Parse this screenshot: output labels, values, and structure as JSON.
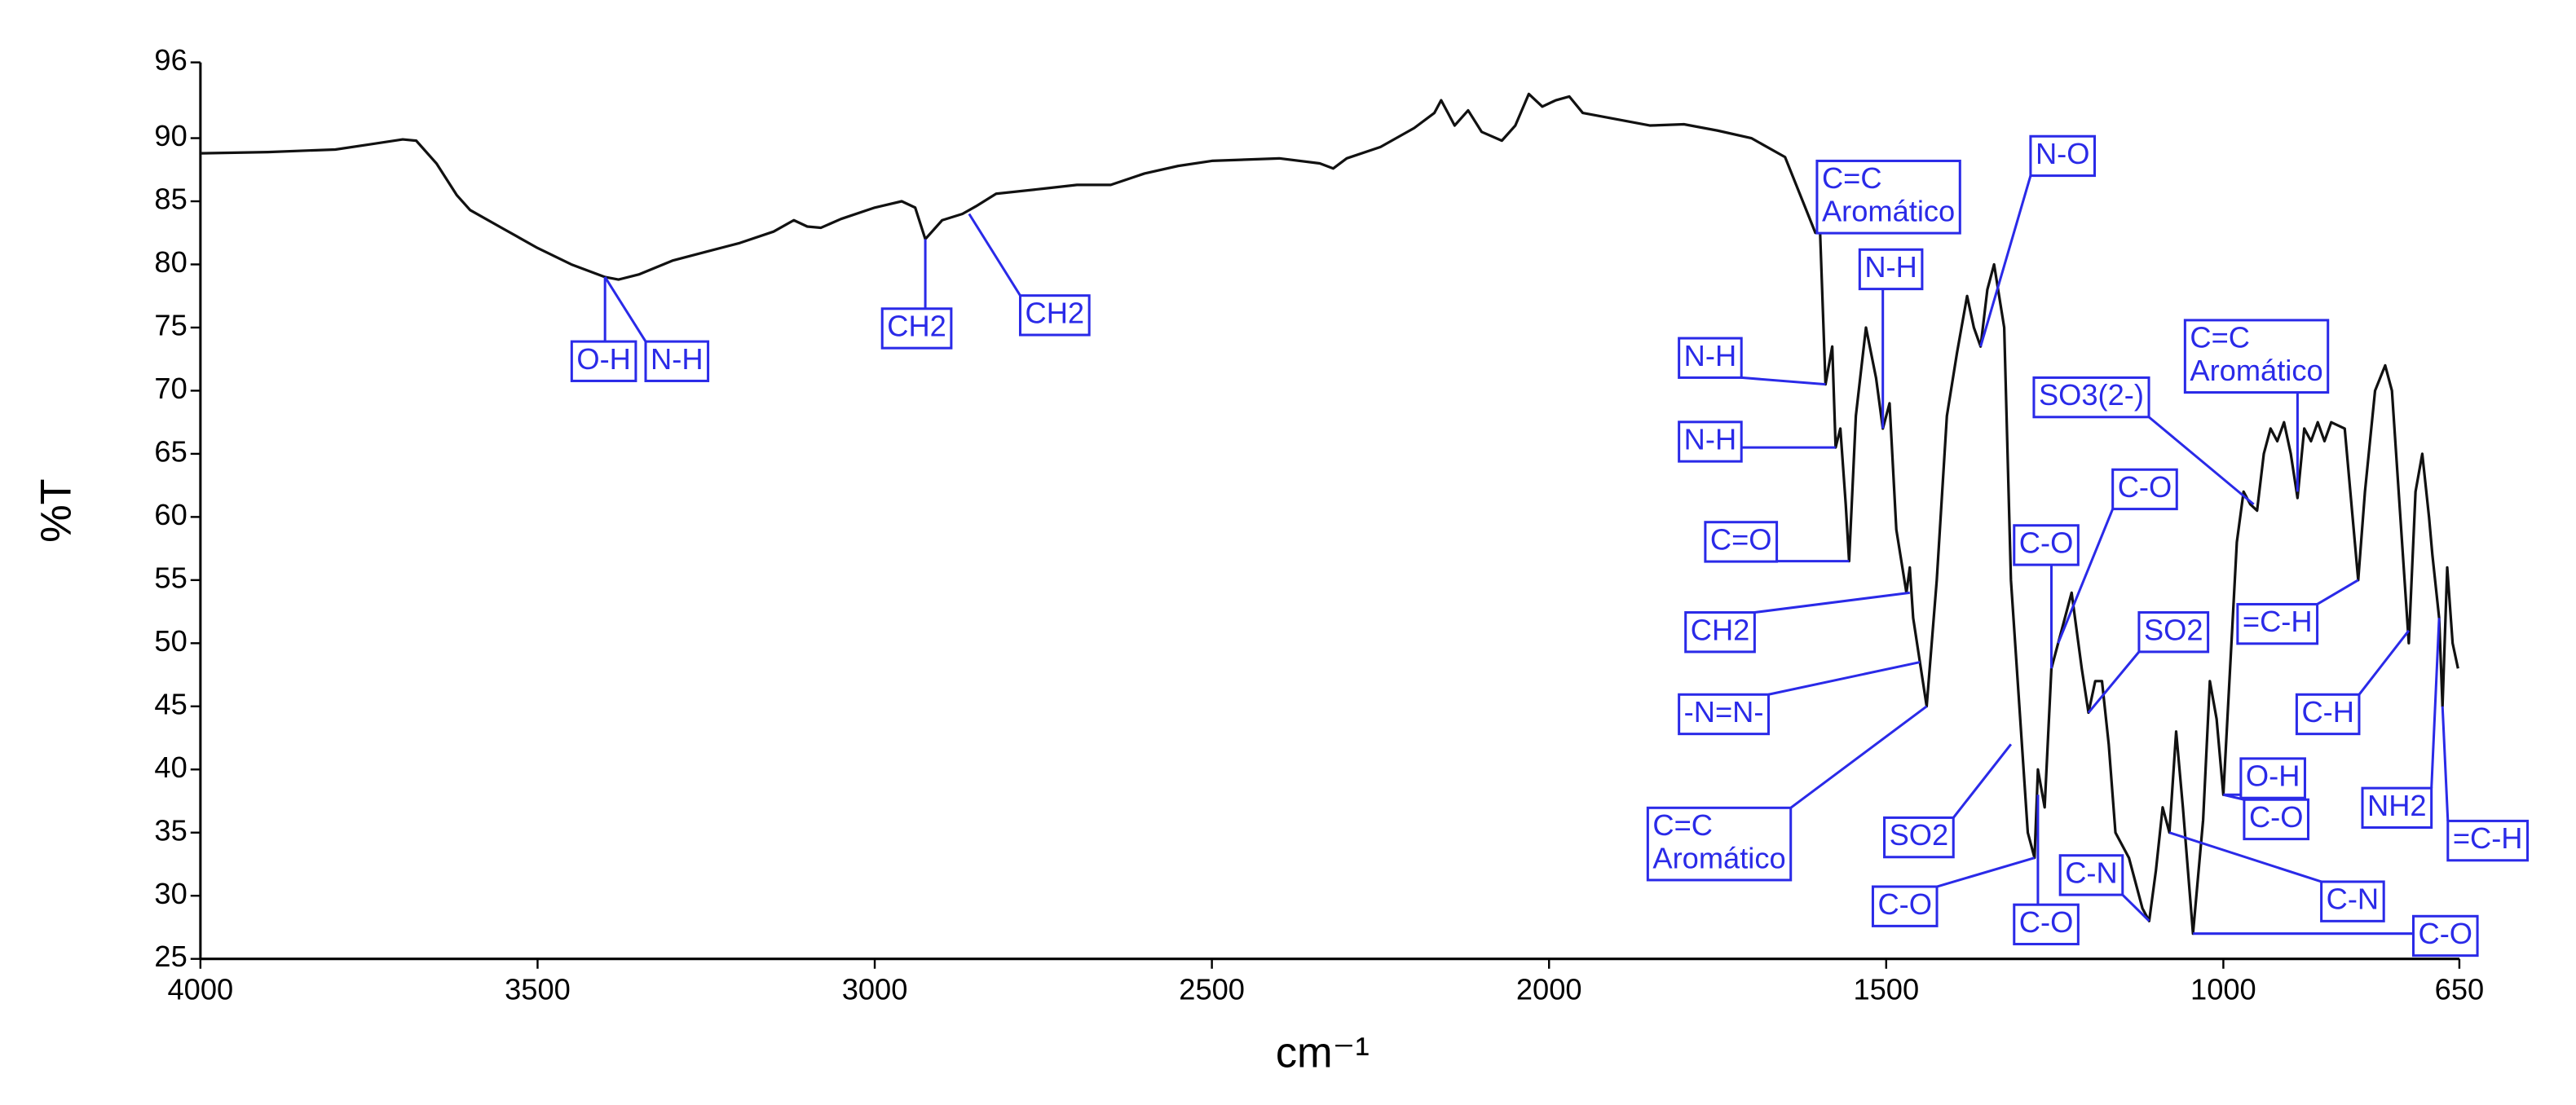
{
  "chart_data": {
    "type": "line",
    "xlabel": "cm⁻¹",
    "ylabel": "%T",
    "xlim": [
      4000,
      650
    ],
    "xticks": [
      4000,
      3500,
      3000,
      2500,
      2000,
      1500,
      1000,
      650
    ],
    "ylim": [
      25,
      96
    ],
    "yticks": [
      25,
      30,
      35,
      40,
      45,
      50,
      55,
      60,
      65,
      70,
      75,
      80,
      85,
      90,
      96
    ],
    "color": "#111111",
    "annotation_color": "#2a2ae8",
    "x": [
      4000,
      3900,
      3800,
      3750,
      3700,
      3680,
      3650,
      3620,
      3600,
      3550,
      3500,
      3450,
      3400,
      3380,
      3350,
      3300,
      3250,
      3200,
      3150,
      3120,
      3100,
      3080,
      3050,
      3000,
      2960,
      2940,
      2925,
      2900,
      2870,
      2850,
      2820,
      2750,
      2700,
      2650,
      2600,
      2550,
      2500,
      2400,
      2340,
      2320,
      2300,
      2250,
      2200,
      2170,
      2160,
      2150,
      2140,
      2120,
      2100,
      2070,
      2050,
      2030,
      2010,
      1990,
      1970,
      1950,
      1900,
      1850,
      1800,
      1750,
      1700,
      1650,
      1620,
      1605,
      1598,
      1590,
      1580,
      1575,
      1568,
      1560,
      1555,
      1545,
      1530,
      1515,
      1505,
      1495,
      1485,
      1470,
      1465,
      1460,
      1450,
      1440,
      1425,
      1410,
      1395,
      1380,
      1370,
      1360,
      1350,
      1340,
      1325,
      1315,
      1300,
      1290,
      1280,
      1275,
      1265,
      1255,
      1245,
      1235,
      1225,
      1210,
      1200,
      1190,
      1180,
      1170,
      1160,
      1140,
      1120,
      1110,
      1100,
      1090,
      1080,
      1070,
      1060,
      1045,
      1030,
      1020,
      1010,
      1000,
      990,
      980,
      970,
      960,
      950,
      940,
      930,
      920,
      910,
      900,
      890,
      880,
      870,
      860,
      850,
      840,
      820,
      800,
      790,
      775,
      760,
      750,
      735,
      725,
      715,
      705,
      695,
      690,
      680,
      675,
      668,
      660,
      652
    ],
    "values": [
      88.8,
      88.9,
      89.1,
      89.5,
      89.9,
      89.8,
      88,
      85.5,
      84.3,
      82.8,
      81.3,
      80,
      79,
      78.8,
      79.2,
      80.3,
      81,
      81.7,
      82.6,
      83.5,
      83,
      82.9,
      83.6,
      84.5,
      85,
      84.5,
      82,
      83.5,
      84,
      84.6,
      85.6,
      86,
      86.3,
      86.3,
      87.2,
      87.8,
      88.2,
      88.4,
      88,
      87.6,
      88.4,
      89.3,
      90.8,
      92,
      93,
      92,
      91,
      92.2,
      90.5,
      89.8,
      91,
      93.5,
      92.5,
      93,
      93.3,
      92,
      91.5,
      91,
      91.1,
      90.6,
      90,
      88.5,
      84.5,
      82.5,
      82.5,
      70.5,
      73.5,
      65.5,
      67,
      61,
      56.5,
      68,
      75,
      71,
      67,
      69,
      59,
      54,
      56,
      52,
      48.5,
      45,
      55,
      68,
      73,
      77.5,
      75,
      73.5,
      78,
      80,
      75,
      55,
      43,
      35,
      33,
      40,
      37,
      48,
      50,
      52,
      54,
      48,
      44.5,
      47,
      47,
      42,
      35,
      33,
      29,
      28,
      32,
      37,
      35,
      43,
      37,
      27,
      36,
      47,
      44,
      38,
      48,
      58,
      62,
      61,
      60.5,
      65,
      67,
      66,
      67.5,
      65,
      61.5,
      67,
      66,
      67.5,
      66,
      67.5,
      67,
      55,
      62,
      70,
      72,
      70,
      58,
      50,
      62,
      65,
      60,
      57,
      52,
      45,
      56,
      50,
      48
    ],
    "annotations": [
      {
        "text": [
          "O-H"
        ],
        "x": 3400,
        "y": 79
      },
      {
        "text": [
          "N-H"
        ],
        "x": 3400,
        "y": 79
      },
      {
        "text": [
          "CH2"
        ],
        "x": 2925,
        "y": 82
      },
      {
        "text": [
          "CH2"
        ],
        "x": 2860,
        "y": 84
      },
      {
        "text": [
          "C=C",
          "Aromático"
        ],
        "x": 1603,
        "y": 82.5
      },
      {
        "text": [
          "N-H"
        ],
        "x": 1505,
        "y": 67
      },
      {
        "text": [
          "N-O"
        ],
        "x": 1360,
        "y": 73.5
      },
      {
        "text": [
          "N-H"
        ],
        "x": 1590,
        "y": 70.5
      },
      {
        "text": [
          "N-H"
        ],
        "x": 1575,
        "y": 65.5
      },
      {
        "text": [
          "C=O"
        ],
        "x": 1555,
        "y": 56.5
      },
      {
        "text": [
          "CH2"
        ],
        "x": 1465,
        "y": 54
      },
      {
        "text": [
          "-N=N-"
        ],
        "x": 1450,
        "y": 48.5
      },
      {
        "text": [
          "C=C",
          "Aromático"
        ],
        "x": 1440,
        "y": 45
      },
      {
        "text": [
          "SO2"
        ],
        "x": 1315,
        "y": 42
      },
      {
        "text": [
          "C-O"
        ],
        "x": 1280,
        "y": 33
      },
      {
        "text": [
          "C-O"
        ],
        "x": 1275,
        "y": 38
      },
      {
        "text": [
          "C-O"
        ],
        "x": 1255,
        "y": 48
      },
      {
        "text": [
          "C-O"
        ],
        "x": 1245,
        "y": 50
      },
      {
        "text": [
          "SO2"
        ],
        "x": 1200,
        "y": 44.5
      },
      {
        "text": [
          "C-N"
        ],
        "x": 1110,
        "y": 28
      },
      {
        "text": [
          "C-N"
        ],
        "x": 1080,
        "y": 35
      },
      {
        "text": [
          "C-O"
        ],
        "x": 1045,
        "y": 27
      },
      {
        "text": [
          "SO3(2-)"
        ],
        "x": 955,
        "y": 61
      },
      {
        "text": [
          "C=C",
          "Aromático"
        ],
        "x": 890,
        "y": 62
      },
      {
        "text": [
          "=C-H"
        ],
        "x": 800,
        "y": 55
      },
      {
        "text": [
          "C-H"
        ],
        "x": 725,
        "y": 51
      },
      {
        "text": [
          "O-H"
        ],
        "x": 1000,
        "y": 38
      },
      {
        "text": [
          "C-O"
        ],
        "x": 1000,
        "y": 38
      },
      {
        "text": [
          "NH2"
        ],
        "x": 680,
        "y": 52
      },
      {
        "text": [
          "=C-H"
        ],
        "x": 675,
        "y": 45
      }
    ]
  }
}
